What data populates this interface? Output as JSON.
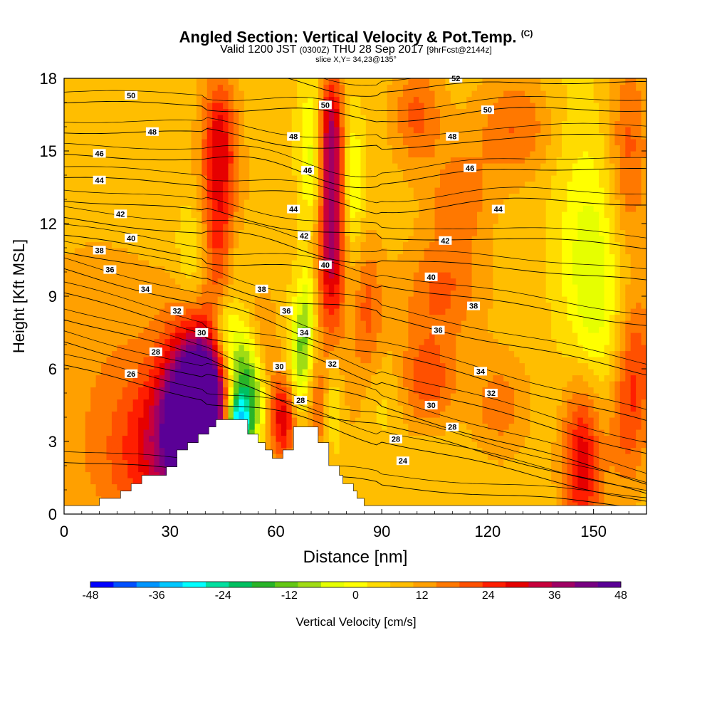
{
  "header": {
    "title": "Angled Section: Vertical Velocity & Pot.Temp.",
    "title_unit": "(C)",
    "valid_prefix": "Valid 1200 JST",
    "valid_zulu": "(0300Z)",
    "valid_date": "THU 28 Sep 2017",
    "forecast": "[9hrFcst@2144z]",
    "slice": "slice X,Y= 34,23@135°"
  },
  "chart_data": {
    "type": "heatmap",
    "title": "Angled Section: Vertical Velocity & Pot.Temp.",
    "xlabel": "Distance [nm]",
    "ylabel": "Height [Kft MSL]",
    "xlim": [
      0,
      165
    ],
    "ylim": [
      0,
      18
    ],
    "x_ticks": [
      0,
      30,
      60,
      90,
      120,
      150
    ],
    "y_ticks": [
      0,
      3,
      6,
      9,
      12,
      15,
      18
    ],
    "colorbar": {
      "title": "Vertical Velocity [cm/s]",
      "range": [
        -48,
        48
      ],
      "step": 6,
      "labels": [
        "-48",
        "-36",
        "-24",
        "-12",
        "0",
        "12",
        "24",
        "36",
        "48"
      ],
      "colors": [
        "#0000ff",
        "#0050ff",
        "#0096ff",
        "#00c8ff",
        "#00ffff",
        "#00e0a0",
        "#00c060",
        "#28b428",
        "#64c814",
        "#a0dc14",
        "#e6ff00",
        "#ffff00",
        "#ffdc00",
        "#ffbe00",
        "#ffa000",
        "#ff7800",
        "#ff5000",
        "#ff1e00",
        "#e60000",
        "#c8003c",
        "#a00064",
        "#780082",
        "#5a0096"
      ]
    },
    "background_value": 8,
    "vertical_velocity_cells": [
      {
        "x": 37,
        "z": 4.3,
        "sx": 6,
        "sz": 2.5,
        "v": 42
      },
      {
        "x": 33,
        "z": 3.0,
        "sx": 11,
        "sz": 2.3,
        "v": 22
      },
      {
        "x": 42,
        "z": 5.5,
        "sx": 4,
        "sz": 1.8,
        "v": 16
      },
      {
        "x": 20,
        "z": 1.6,
        "sx": 14,
        "sz": 2.2,
        "v": 6
      },
      {
        "x": 10,
        "z": 7.0,
        "sx": 16,
        "sz": 3.5,
        "v": 5
      },
      {
        "x": 44,
        "z": 12.5,
        "sx": 4,
        "sz": 3.2,
        "v": 20
      },
      {
        "x": 44,
        "z": 16.0,
        "sx": 3,
        "sz": 1.5,
        "v": 10
      },
      {
        "x": 37,
        "z": 10.5,
        "sx": 3.5,
        "sz": 1.8,
        "v": -10
      },
      {
        "x": 48,
        "z": 10.7,
        "sx": 2.5,
        "sz": 1.5,
        "v": -7
      },
      {
        "x": 50,
        "z": 5.3,
        "sx": 4,
        "sz": 1.6,
        "v": -28
      },
      {
        "x": 49,
        "z": 3.7,
        "sx": 2.5,
        "sz": 0.8,
        "v": -36
      },
      {
        "x": 45,
        "z": 7.5,
        "sx": 3,
        "sz": 1.2,
        "v": -18
      },
      {
        "x": 54,
        "z": 4.5,
        "sx": 3,
        "sz": 2.0,
        "v": -10
      },
      {
        "x": 56,
        "z": 7.0,
        "sx": 3,
        "sz": 1.5,
        "v": 10
      },
      {
        "x": 62,
        "z": 4.0,
        "sx": 3,
        "sz": 1.3,
        "v": 22
      },
      {
        "x": 67,
        "z": 6.3,
        "sx": 2.5,
        "sz": 1.8,
        "v": -18
      },
      {
        "x": 69,
        "z": 8.5,
        "sx": 2,
        "sz": 1.5,
        "v": -10
      },
      {
        "x": 72,
        "z": 4.5,
        "sx": 2.5,
        "sz": 1.8,
        "v": 14
      },
      {
        "x": 76,
        "z": 4.7,
        "sx": 3,
        "sz": 1.5,
        "v": -12
      },
      {
        "x": 76,
        "z": 12.3,
        "sx": 3,
        "sz": 3.3,
        "v": 34
      },
      {
        "x": 75,
        "z": 16.0,
        "sx": 2.5,
        "sz": 1.6,
        "v": 16
      },
      {
        "x": 71,
        "z": 15.8,
        "sx": 3,
        "sz": 2.0,
        "v": -12
      },
      {
        "x": 71,
        "z": 13.5,
        "sx": 2.5,
        "sz": 1.5,
        "v": -8
      },
      {
        "x": 81,
        "z": 14.0,
        "sx": 2.5,
        "sz": 2.0,
        "v": -14
      },
      {
        "x": 80,
        "z": 11.0,
        "sx": 3,
        "sz": 2.0,
        "v": -4
      },
      {
        "x": 86,
        "z": 8.5,
        "sx": 3,
        "sz": 2.0,
        "v": 12
      },
      {
        "x": 80,
        "z": 5.0,
        "sx": 3,
        "sz": 1.5,
        "v": 6
      },
      {
        "x": 91,
        "z": 4.7,
        "sx": 4,
        "sz": 1.2,
        "v": -4
      },
      {
        "x": 103,
        "z": 5.5,
        "sx": 6,
        "sz": 1.5,
        "v": 14
      },
      {
        "x": 100,
        "z": 16.5,
        "sx": 5,
        "sz": 1.5,
        "v": 12
      },
      {
        "x": 112,
        "z": 13.0,
        "sx": 6,
        "sz": 1.5,
        "v": 10
      },
      {
        "x": 107,
        "z": 9.3,
        "sx": 8,
        "sz": 1.5,
        "v": 11
      },
      {
        "x": 107,
        "z": 2.5,
        "sx": 7,
        "sz": 1.8,
        "v": -2
      },
      {
        "x": 123,
        "z": 4.5,
        "sx": 6,
        "sz": 1.5,
        "v": 9
      },
      {
        "x": 128,
        "z": 16.0,
        "sx": 8,
        "sz": 1.5,
        "v": 11
      },
      {
        "x": 142,
        "z": 16.0,
        "sx": 6,
        "sz": 3.0,
        "v": -3
      },
      {
        "x": 149,
        "z": 10.0,
        "sx": 6,
        "sz": 3.5,
        "v": -12
      },
      {
        "x": 152,
        "z": 6.0,
        "sx": 5,
        "sz": 4.0,
        "v": -4
      },
      {
        "x": 147,
        "z": 2.3,
        "sx": 4,
        "sz": 2.5,
        "v": 24
      },
      {
        "x": 159,
        "z": 3.5,
        "sx": 4,
        "sz": 2.0,
        "v": 12
      },
      {
        "x": 162,
        "z": 6.5,
        "sx": 4,
        "sz": 2.0,
        "v": 12
      },
      {
        "x": 160,
        "z": 15.0,
        "sx": 4,
        "sz": 3.0,
        "v": 12
      }
    ],
    "terrain_profile": [
      {
        "x": 0,
        "z": 0.35
      },
      {
        "x": 10,
        "z": 0.35
      },
      {
        "x": 10,
        "z": 0.65
      },
      {
        "x": 16,
        "z": 0.65
      },
      {
        "x": 16,
        "z": 0.95
      },
      {
        "x": 19,
        "z": 0.95
      },
      {
        "x": 19,
        "z": 1.25
      },
      {
        "x": 22,
        "z": 1.25
      },
      {
        "x": 22,
        "z": 1.6
      },
      {
        "x": 29,
        "z": 1.6
      },
      {
        "x": 29,
        "z": 1.95
      },
      {
        "x": 32,
        "z": 1.95
      },
      {
        "x": 32,
        "z": 2.65
      },
      {
        "x": 35,
        "z": 2.65
      },
      {
        "x": 35,
        "z": 2.95
      },
      {
        "x": 38,
        "z": 2.95
      },
      {
        "x": 38,
        "z": 3.3
      },
      {
        "x": 41,
        "z": 3.3
      },
      {
        "x": 41,
        "z": 3.6
      },
      {
        "x": 43,
        "z": 3.6
      },
      {
        "x": 43,
        "z": 3.9
      },
      {
        "x": 52,
        "z": 3.9
      },
      {
        "x": 52,
        "z": 3.3
      },
      {
        "x": 55,
        "z": 3.3
      },
      {
        "x": 55,
        "z": 2.95
      },
      {
        "x": 57,
        "z": 2.95
      },
      {
        "x": 57,
        "z": 2.65
      },
      {
        "x": 59,
        "z": 2.65
      },
      {
        "x": 59,
        "z": 2.3
      },
      {
        "x": 62,
        "z": 2.3
      },
      {
        "x": 62,
        "z": 2.65
      },
      {
        "x": 65,
        "z": 2.65
      },
      {
        "x": 65,
        "z": 3.6
      },
      {
        "x": 72,
        "z": 3.6
      },
      {
        "x": 72,
        "z": 2.95
      },
      {
        "x": 75,
        "z": 2.95
      },
      {
        "x": 75,
        "z": 2.0
      },
      {
        "x": 78,
        "z": 2.0
      },
      {
        "x": 78,
        "z": 1.6
      },
      {
        "x": 79,
        "z": 1.6
      },
      {
        "x": 79,
        "z": 1.25
      },
      {
        "x": 82,
        "z": 1.25
      },
      {
        "x": 82,
        "z": 0.95
      },
      {
        "x": 83,
        "z": 0.95
      },
      {
        "x": 83,
        "z": 0.65
      },
      {
        "x": 85,
        "z": 0.65
      },
      {
        "x": 85,
        "z": 0.35
      },
      {
        "x": 165,
        "z": 0.35
      }
    ],
    "isentropes": [
      {
        "theta": 24,
        "z_left": 2.2,
        "z_right": 0.3,
        "sag": 0.0,
        "sag_x": 88
      },
      {
        "theta": 26,
        "z_left": 6.1,
        "z_right": 0.5,
        "sag": 0.0,
        "sag_x": 88
      },
      {
        "theta": 28,
        "z_left": 7.1,
        "z_right": 0.8,
        "sag": 0.0,
        "sag_x": 88
      },
      {
        "theta": 30,
        "z_left": 8.1,
        "z_right": 1.3,
        "sag": 0.0,
        "sag_x": 88
      },
      {
        "theta": 32,
        "z_left": 9.1,
        "z_right": 2.5,
        "sag": 0.0,
        "sag_x": 88
      },
      {
        "theta": 34,
        "z_left": 10.1,
        "z_right": 3.8,
        "sag": 0.0,
        "sag_x": 88
      },
      {
        "theta": 36,
        "z_left": 10.9,
        "z_right": 5.8,
        "sag": 0.0,
        "sag_x": 88
      },
      {
        "theta": 38,
        "z_left": 11.5,
        "z_right": 7.8,
        "sag": 0.0,
        "sag_x": 88
      },
      {
        "theta": 40,
        "z_left": 12.2,
        "z_right": 9.6,
        "sag": 0.3,
        "sag_x": 88
      },
      {
        "theta": 42,
        "z_left": 13.0,
        "z_right": 11.0,
        "sag": 0.6,
        "sag_x": 88
      },
      {
        "theta": 44,
        "z_left": 13.9,
        "z_right": 12.8,
        "sag": 0.8,
        "sag_x": 88
      },
      {
        "theta": 46,
        "z_left": 14.8,
        "z_right": 14.2,
        "sag": 0.8,
        "sag_x": 88
      },
      {
        "theta": 48,
        "z_left": 15.8,
        "z_right": 15.6,
        "sag": 0.7,
        "sag_x": 88
      },
      {
        "theta": 50,
        "z_left": 17.0,
        "z_right": 16.7,
        "sag": 0.6,
        "sag_x": 88
      },
      {
        "theta": 52,
        "z_left": 18.2,
        "z_right": 17.8,
        "sag": 0.5,
        "sag_x": 88
      }
    ],
    "contour_labels": [
      {
        "text": "50",
        "x": 19,
        "z": 17.3
      },
      {
        "text": "48",
        "x": 25,
        "z": 15.8
      },
      {
        "text": "46",
        "x": 10,
        "z": 14.9
      },
      {
        "text": "44",
        "x": 10,
        "z": 13.8
      },
      {
        "text": "42",
        "x": 16,
        "z": 12.4
      },
      {
        "text": "40",
        "x": 19,
        "z": 11.4
      },
      {
        "text": "38",
        "x": 10,
        "z": 10.9
      },
      {
        "text": "36",
        "x": 13,
        "z": 10.1
      },
      {
        "text": "34",
        "x": 23,
        "z": 9.3
      },
      {
        "text": "32",
        "x": 32,
        "z": 8.4
      },
      {
        "text": "30",
        "x": 39,
        "z": 7.5
      },
      {
        "text": "28",
        "x": 26,
        "z": 6.7
      },
      {
        "text": "26",
        "x": 19,
        "z": 5.8
      },
      {
        "text": "38",
        "x": 56,
        "z": 9.3
      },
      {
        "text": "36",
        "x": 63,
        "z": 8.4
      },
      {
        "text": "34",
        "x": 68,
        "z": 7.5
      },
      {
        "text": "30",
        "x": 61,
        "z": 6.1
      },
      {
        "text": "32",
        "x": 76,
        "z": 6.2
      },
      {
        "text": "28",
        "x": 67,
        "z": 4.7
      },
      {
        "text": "28",
        "x": 94,
        "z": 3.1
      },
      {
        "text": "24",
        "x": 96,
        "z": 2.2
      },
      {
        "text": "52",
        "x": 111,
        "z": 18.0
      },
      {
        "text": "50",
        "x": 74,
        "z": 16.9
      },
      {
        "text": "50",
        "x": 120,
        "z": 16.7
      },
      {
        "text": "48",
        "x": 65,
        "z": 15.6
      },
      {
        "text": "48",
        "x": 110,
        "z": 15.6
      },
      {
        "text": "46",
        "x": 69,
        "z": 14.2
      },
      {
        "text": "46",
        "x": 115,
        "z": 14.3
      },
      {
        "text": "44",
        "x": 65,
        "z": 12.6
      },
      {
        "text": "44",
        "x": 123,
        "z": 12.6
      },
      {
        "text": "42",
        "x": 68,
        "z": 11.5
      },
      {
        "text": "42",
        "x": 108,
        "z": 11.3
      },
      {
        "text": "40",
        "x": 74,
        "z": 10.3
      },
      {
        "text": "40",
        "x": 104,
        "z": 9.8
      },
      {
        "text": "38",
        "x": 116,
        "z": 8.6
      },
      {
        "text": "36",
        "x": 106,
        "z": 7.6
      },
      {
        "text": "34",
        "x": 118,
        "z": 5.9
      },
      {
        "text": "32",
        "x": 121,
        "z": 5.0
      },
      {
        "text": "30",
        "x": 104,
        "z": 4.5
      },
      {
        "text": "28",
        "x": 110,
        "z": 3.6
      }
    ]
  }
}
